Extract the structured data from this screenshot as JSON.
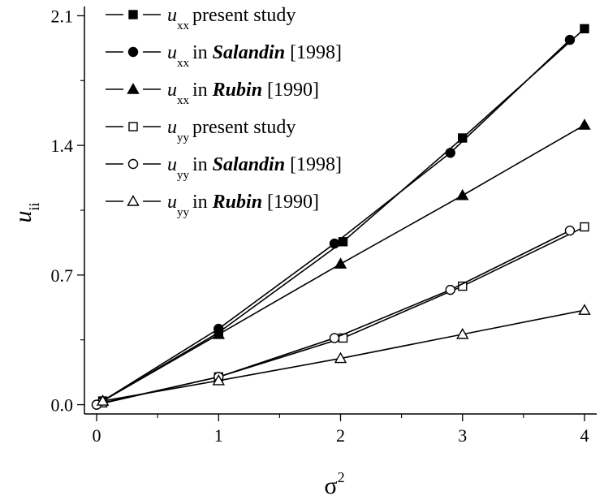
{
  "chart_data": {
    "type": "line",
    "xlabel": "σ",
    "xlabel_sup": "2",
    "ylabel": "u",
    "ylabel_sub": "ii",
    "xlim": [
      -0.1,
      4.1
    ],
    "ylim": [
      -0.05,
      2.15
    ],
    "xticks": [
      0,
      1,
      2,
      3,
      4
    ],
    "xtick_labels": [
      "0",
      "1",
      "2",
      "3",
      "4"
    ],
    "yticks": [
      0.0,
      0.7,
      1.4,
      2.1
    ],
    "ytick_labels": [
      "0.0",
      "0.7",
      "1.4",
      "2.1"
    ],
    "grid": false,
    "legend_position": "top-left",
    "series": [
      {
        "sym": "u",
        "sub": "xx",
        "pre": "present study",
        "italic": "",
        "post": "",
        "marker": "square",
        "filled": true,
        "points": [
          [
            0.05,
            0.02
          ],
          [
            1.0,
            0.39
          ],
          [
            2.02,
            0.88
          ],
          [
            3.0,
            1.44
          ],
          [
            4.0,
            2.03
          ]
        ]
      },
      {
        "sym": "u",
        "sub": "xx",
        "pre": "in ",
        "italic": "Salandin",
        "post": " [1998]",
        "marker": "circle",
        "filled": true,
        "points": [
          [
            0.0,
            0.0
          ],
          [
            1.0,
            0.41
          ],
          [
            1.95,
            0.87
          ],
          [
            2.9,
            1.36
          ],
          [
            3.88,
            1.97
          ]
        ]
      },
      {
        "sym": "u",
        "sub": "xx",
        "pre": "in ",
        "italic": "Rubin",
        "post": " [1990]",
        "marker": "triangle",
        "filled": true,
        "points": [
          [
            0.05,
            0.02
          ],
          [
            1.0,
            0.38
          ],
          [
            2.0,
            0.76
          ],
          [
            3.0,
            1.13
          ],
          [
            4.0,
            1.51
          ]
        ]
      },
      {
        "sym": "u",
        "sub": "yy",
        "pre": "present study",
        "italic": "",
        "post": "",
        "marker": "square",
        "filled": false,
        "points": [
          [
            0.05,
            0.01
          ],
          [
            1.0,
            0.15
          ],
          [
            2.02,
            0.36
          ],
          [
            3.0,
            0.64
          ],
          [
            4.0,
            0.96
          ]
        ]
      },
      {
        "sym": "u",
        "sub": "yy",
        "pre": "in ",
        "italic": "Salandin",
        "post": " [1998]",
        "marker": "circle",
        "filled": false,
        "points": [
          [
            0.0,
            0.0
          ],
          [
            1.0,
            0.15
          ],
          [
            1.95,
            0.36
          ],
          [
            2.9,
            0.62
          ],
          [
            3.88,
            0.94
          ]
        ]
      },
      {
        "sym": "u",
        "sub": "yy",
        "pre": "in ",
        "italic": "Rubin",
        "post": " [1990]",
        "marker": "triangle",
        "filled": false,
        "points": [
          [
            0.05,
            0.02
          ],
          [
            1.0,
            0.13
          ],
          [
            2.0,
            0.25
          ],
          [
            3.0,
            0.38
          ],
          [
            4.0,
            0.51
          ]
        ]
      }
    ]
  }
}
